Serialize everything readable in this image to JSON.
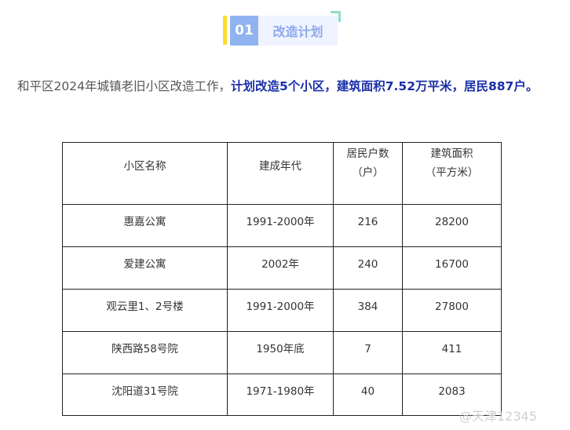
{
  "header": {
    "number": "01",
    "title": "改造计划",
    "accent_colors": {
      "bar": "#fcdc2a",
      "number_bg": "#8fb3f0",
      "title_bg": "#eff3ff",
      "corner": "#8fdcc8"
    }
  },
  "intro": {
    "plain": "和平区2024年城镇老旧小区改造工作，",
    "bold": "计划改造5个小区，建筑面积7.52万平米，居民887户。"
  },
  "table": {
    "headers": [
      "小区名称",
      "建成年代",
      "居民户数（户）",
      "建筑面积（平方米）"
    ],
    "header_lines": [
      [
        "小区名称"
      ],
      [
        "建成年代"
      ],
      [
        "居民户数",
        "（户）"
      ],
      [
        "建筑面积",
        "（平方米）"
      ]
    ],
    "rows": [
      [
        "惠嘉公寓",
        "1991-2000年",
        "216",
        "28200"
      ],
      [
        "爱建公寓",
        "2002年",
        "240",
        "16700"
      ],
      [
        "观云里1、2号楼",
        "1991-2000年",
        "384",
        "27800"
      ],
      [
        "陕西路58号院",
        "1950年底",
        "7",
        "411"
      ],
      [
        "沈阳道31号院",
        "1971-1980年",
        "40",
        "2083"
      ]
    ]
  },
  "watermark": "@天津12345"
}
